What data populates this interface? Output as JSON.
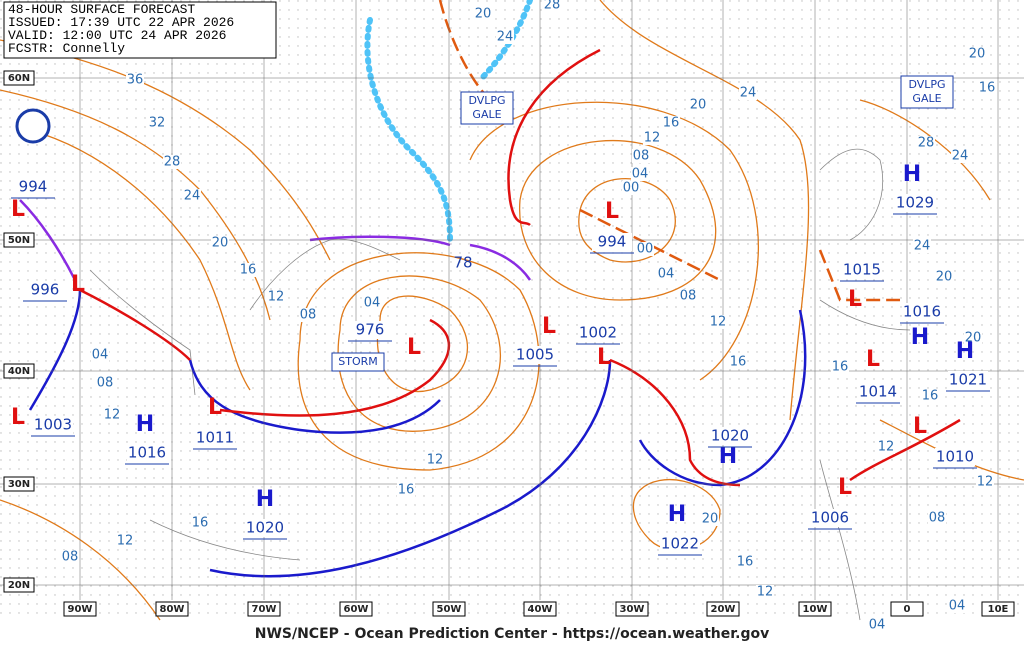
{
  "header": {
    "lines": [
      "48-HOUR SURFACE FORECAST",
      "ISSUED: 17:39 UTC 22 APR 2026",
      "VALID:  12:00 UTC 24 APR 2026",
      "FCSTR:  Connelly"
    ]
  },
  "footer": "NWS/NCEP - Ocean Prediction Center - https://ocean.weather.gov",
  "lat_labels": [
    "60N",
    "50N",
    "40N",
    "30N",
    "20N"
  ],
  "lon_labels": [
    "90W",
    "80W",
    "70W",
    "60W",
    "50W",
    "40W",
    "30W",
    "20W",
    "10W",
    "0",
    "10E"
  ],
  "highs": [
    {
      "symbol": "H",
      "pressure": "1029"
    },
    {
      "symbol": "H",
      "pressure": "1016"
    },
    {
      "symbol": "H",
      "pressure": "1020"
    },
    {
      "symbol": "H",
      "pressure": "1022"
    },
    {
      "symbol": "H",
      "pressure": "1020"
    },
    {
      "symbol": "H",
      "pressure": "1016"
    },
    {
      "symbol": "H",
      "pressure": "1021"
    }
  ],
  "lows": [
    {
      "symbol": "L",
      "pressure": "994"
    },
    {
      "symbol": "L",
      "pressure": "996"
    },
    {
      "symbol": "L",
      "pressure": "976"
    },
    {
      "symbol": "L",
      "pressure": "1005"
    },
    {
      "symbol": "L",
      "pressure": "1002"
    },
    {
      "symbol": "L",
      "pressure": "1011"
    },
    {
      "symbol": "L",
      "pressure": "1015"
    },
    {
      "symbol": "L",
      "pressure": "1014"
    },
    {
      "symbol": "L",
      "pressure": "1010"
    },
    {
      "symbol": "L",
      "pressure": "1006"
    },
    {
      "symbol": "L",
      "pressure": "1003"
    },
    {
      "symbol": "L",
      "pressure": "994"
    }
  ],
  "extra_labels": [
    "78"
  ],
  "warnings": [
    {
      "lines": [
        "DVLPG",
        "GALE"
      ]
    },
    {
      "lines": [
        "DVLPG",
        "GALE"
      ]
    },
    {
      "lines": [
        "STORM"
      ]
    }
  ],
  "isobar_labels": [
    "36",
    "32",
    "28",
    "24",
    "20",
    "16",
    "12",
    "08",
    "04",
    "04",
    "08",
    "12",
    "12",
    "16",
    "16",
    "12",
    "08",
    "20",
    "24",
    "28",
    "20",
    "24",
    "16",
    "12",
    "08",
    "04",
    "00",
    "00",
    "04",
    "08",
    "12",
    "16",
    "20",
    "16",
    "24",
    "28",
    "24",
    "20",
    "20",
    "16",
    "16",
    "12",
    "12",
    "08",
    "16",
    "12",
    "20",
    "04",
    "04"
  ]
}
